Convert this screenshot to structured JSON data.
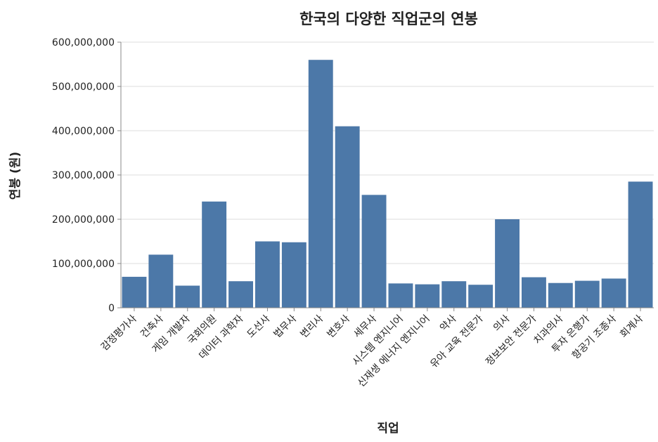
{
  "chart_data": {
    "type": "bar",
    "title": "한국의 다양한 직업군의 연봉",
    "xlabel": "직업",
    "ylabel": "연봉 (원)",
    "ylim": [
      0,
      600000000
    ],
    "yticks": [
      0,
      100000000,
      200000000,
      300000000,
      400000000,
      500000000,
      600000000
    ],
    "ytick_labels": [
      "0",
      "100,000,000",
      "200,000,000",
      "300,000,000",
      "400,000,000",
      "500,000,000",
      "600,000,000"
    ],
    "grid": true,
    "color": "#4c78a8",
    "categories": [
      "감정평가사",
      "건축사",
      "게임 개발자",
      "국회의원",
      "데이터 과학자",
      "도선사",
      "법무사",
      "변리사",
      "변호사",
      "세무사",
      "시스템 엔지니어",
      "신재생 에너지 엔지니어",
      "약사",
      "유아 교육 전문가",
      "의사",
      "정보보안 전문가",
      "치과의사",
      "투자 은행가",
      "항공기 조종사",
      "회계사"
    ],
    "values": [
      70000000,
      120000000,
      50000000,
      240000000,
      60000000,
      150000000,
      148000000,
      560000000,
      410000000,
      255000000,
      55000000,
      53000000,
      60000000,
      52000000,
      200000000,
      69000000,
      56000000,
      61000000,
      66000000,
      285000000
    ]
  }
}
